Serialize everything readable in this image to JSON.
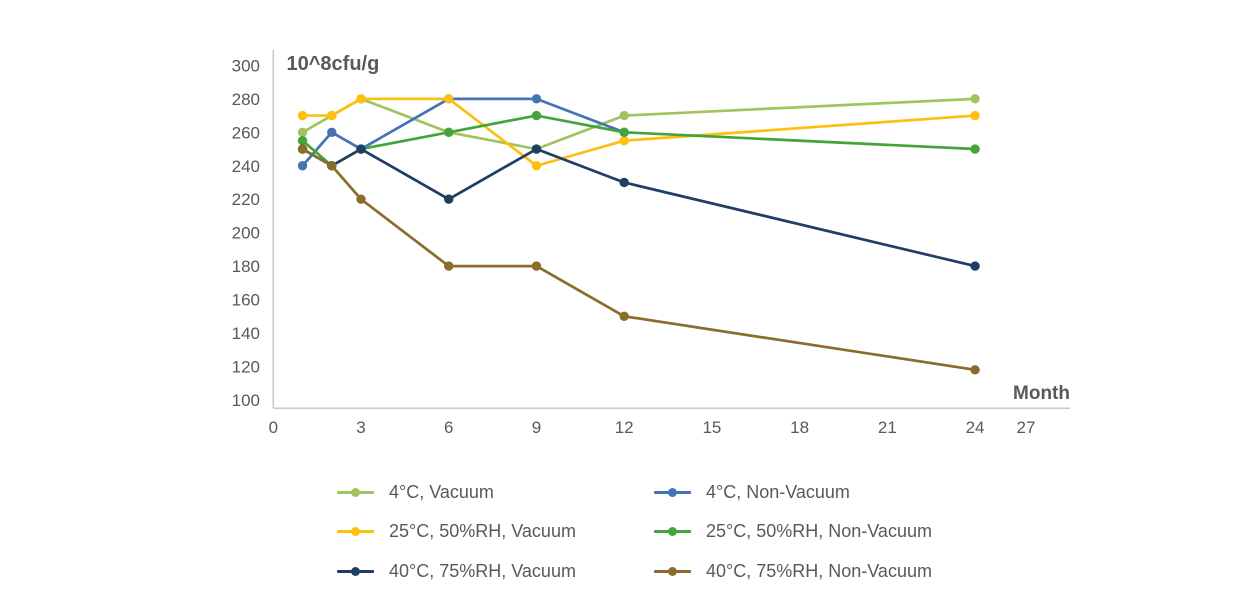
{
  "chart_data": {
    "type": "line",
    "title": "10^8cfu/g",
    "xlabel": "Month",
    "ylabel": "10^8cfu/g",
    "xlim": [
      0,
      27
    ],
    "ylim": [
      100,
      300
    ],
    "x_ticks": [
      0,
      3,
      6,
      9,
      12,
      15,
      18,
      21,
      24,
      27
    ],
    "y_ticks": [
      300,
      280,
      260,
      240,
      220,
      200,
      180,
      160,
      140,
      120,
      100
    ],
    "grid": false,
    "legend_position": "bottom",
    "marker": "circle",
    "axis_color": "#c9c9c9",
    "text_color": "#595959",
    "series": [
      {
        "name": "4°C, Vacuum",
        "color": "#a1c45e",
        "x": [
          1,
          2,
          3,
          6,
          9,
          12,
          24
        ],
        "values": [
          260,
          270,
          280,
          260,
          250,
          270,
          280
        ]
      },
      {
        "name": "4°C, Non-Vacuum",
        "color": "#4573b4",
        "x": [
          1,
          2,
          3,
          6,
          9,
          12
        ],
        "values": [
          240,
          260,
          250,
          280,
          280,
          260
        ]
      },
      {
        "name": "25°C, 50%RH, Vacuum",
        "color": "#fdc010",
        "x": [
          1,
          2,
          3,
          6,
          9,
          12,
          24
        ],
        "values": [
          270,
          270,
          280,
          280,
          240,
          255,
          270
        ]
      },
      {
        "name": "25°C, 50%RH, Non-Vacuum",
        "color": "#45a33c",
        "x": [
          1,
          2,
          3,
          6,
          9,
          12,
          24
        ],
        "values": [
          255,
          240,
          250,
          260,
          270,
          260,
          250
        ]
      },
      {
        "name": "40°C, 75%RH, Vacuum",
        "color": "#1f3e64",
        "x": [
          1,
          2,
          3,
          6,
          9,
          12,
          24
        ],
        "values": [
          250,
          240,
          250,
          220,
          250,
          230,
          180
        ]
      },
      {
        "name": "40°C, 75%RH, Non-Vacuum",
        "color": "#8a6c2c",
        "x": [
          1,
          2,
          3,
          6,
          9,
          12,
          24
        ],
        "values": [
          250,
          240,
          220,
          180,
          180,
          150,
          118
        ]
      }
    ]
  }
}
